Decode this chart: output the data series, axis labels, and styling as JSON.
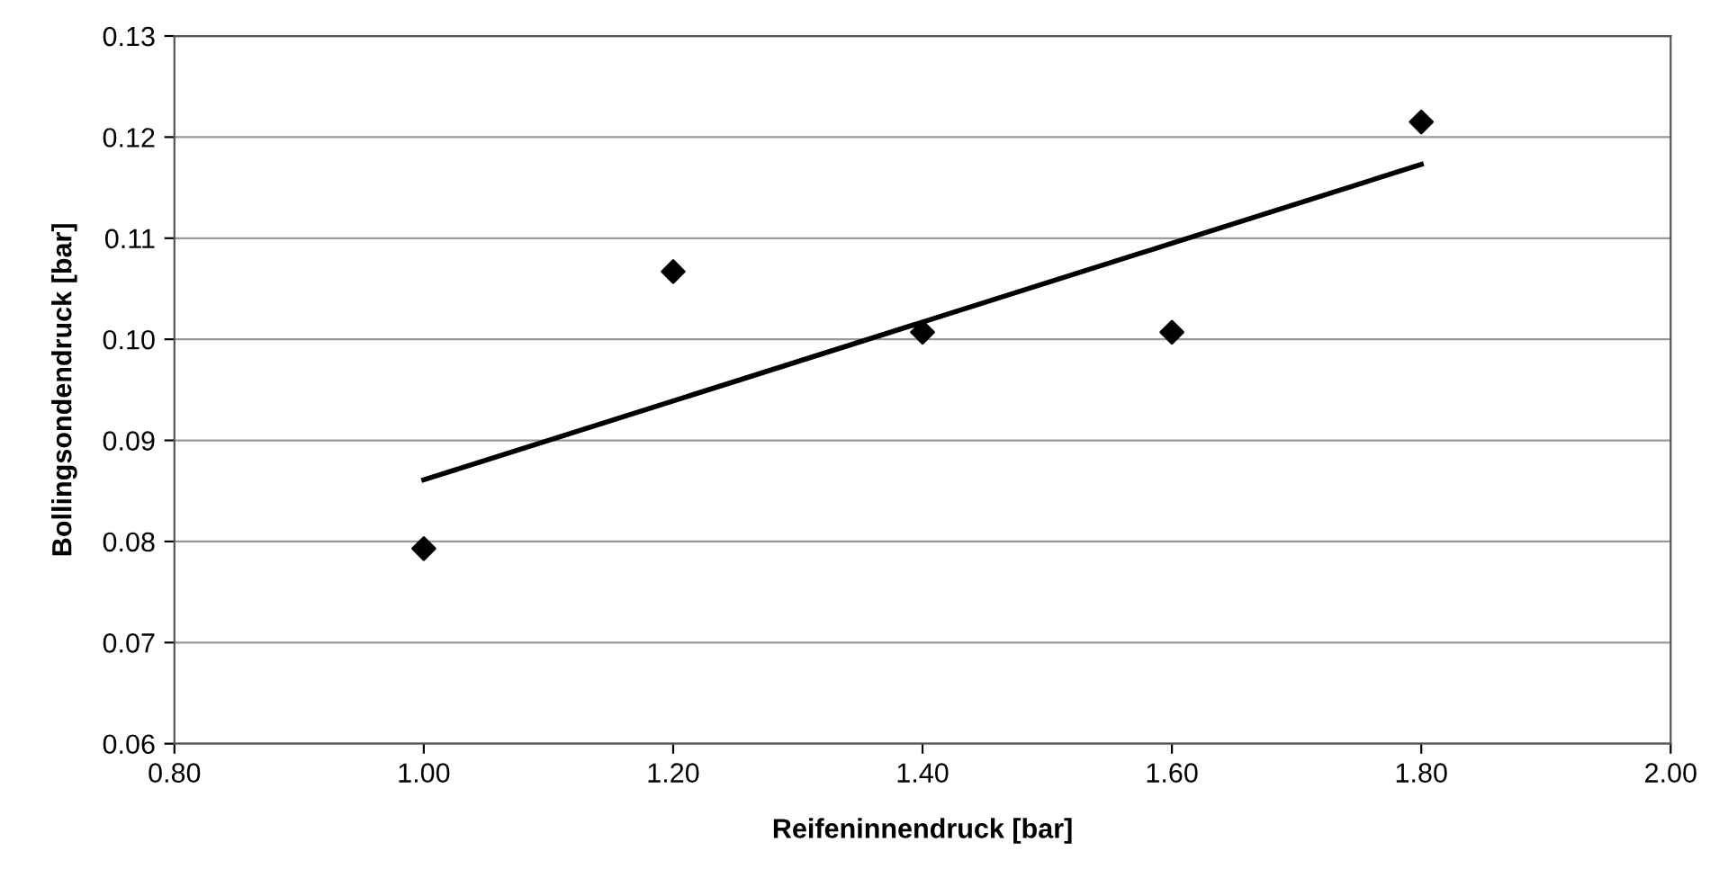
{
  "chart_data": {
    "type": "scatter",
    "xlabel": "Reifeninnendruck [bar]",
    "ylabel": "Bollingsondendruck [bar]",
    "x": [
      1.0,
      1.2,
      1.4,
      1.6,
      1.8
    ],
    "series": [
      {
        "color": "#000000",
        "marker": "diamond",
        "values": [
          0.0793,
          0.1067,
          0.1007,
          0.1007,
          0.1215
        ]
      },
      {
        "type": "line",
        "color": "#000000",
        "x": [
          1.0,
          1.8
        ],
        "values": [
          0.0861,
          0.1173
        ],
        "marker": "none",
        "line_style": "solid"
      }
    ],
    "xlim": [
      0.8,
      2.0
    ],
    "xticks": [
      {
        "value": 0.8,
        "label": "0.80"
      },
      {
        "value": 1.0,
        "label": "1.00"
      },
      {
        "value": 1.2,
        "label": "1.20"
      },
      {
        "value": 1.4,
        "label": "1.40"
      },
      {
        "value": 1.6,
        "label": "1.60"
      },
      {
        "value": 1.8,
        "label": "1.80"
      },
      {
        "value": 2.0,
        "label": "2.00"
      }
    ],
    "ylim": [
      0.06,
      0.13
    ],
    "yticks": [
      {
        "value": 0.06,
        "label": "0.06"
      },
      {
        "value": 0.07,
        "label": "0.07"
      },
      {
        "value": 0.08,
        "label": "0.08"
      },
      {
        "value": 0.09,
        "label": "0.09"
      },
      {
        "value": 0.1,
        "label": "0.10"
      },
      {
        "value": 0.11,
        "label": "0.11"
      },
      {
        "value": 0.12,
        "label": "0.12"
      },
      {
        "value": 0.13,
        "label": "0.13"
      }
    ],
    "grid": "y"
  }
}
